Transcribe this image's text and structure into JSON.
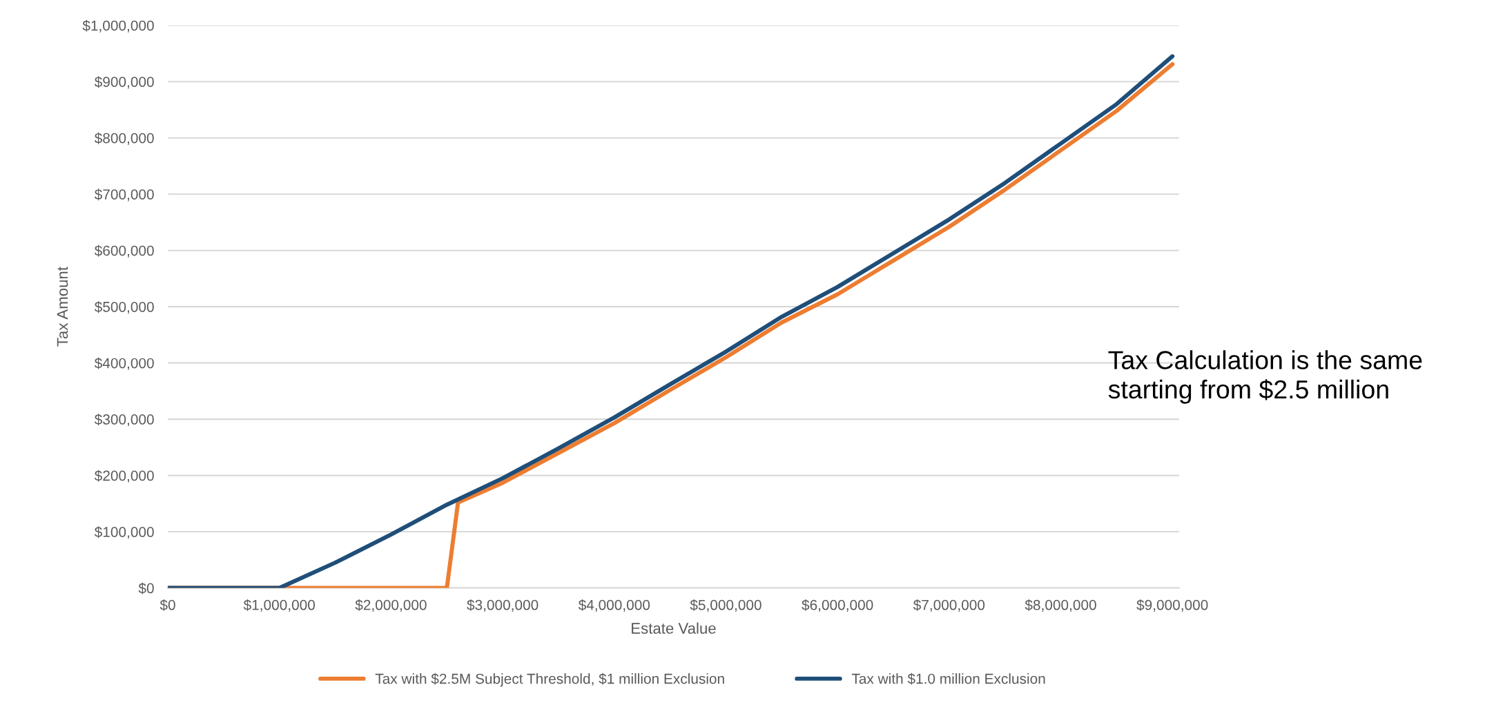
{
  "chart_data": {
    "type": "line",
    "xlabel": "Estate Value",
    "ylabel": "Tax Amount",
    "annotations": [
      "Tax Calculation is the same\nstarting from $2.5 million"
    ],
    "series": [
      {
        "name": "Tax with $2.5M Subject Threshold, $1 million Exclusion",
        "color": "#ed7d31",
        "x": [
          0,
          1000000,
          2000000,
          2500000,
          2600000,
          3000000,
          3500000,
          4000000,
          4500000,
          5000000,
          5500000,
          6000000,
          6500000,
          7000000,
          7500000,
          8000000,
          8500000,
          9000000
        ],
        "values": [
          0,
          0,
          0,
          0,
          152000,
          187000,
          240000,
          293000,
          352000,
          410000,
          472000,
          522000,
          582000,
          642000,
          708000,
          778000,
          848000,
          931000
        ]
      },
      {
        "name": "Tax with $1.0 million Exclusion",
        "color": "#1f4e79",
        "x": [
          0,
          500000,
          1000000,
          1500000,
          2000000,
          2500000,
          3000000,
          3500000,
          4000000,
          4500000,
          5000000,
          5500000,
          6000000,
          6500000,
          7000000,
          7500000,
          8000000,
          8500000,
          9000000
        ],
        "values": [
          0,
          0,
          0,
          45000,
          95000,
          148000,
          195000,
          248000,
          303000,
          362000,
          420000,
          482000,
          535000,
          595000,
          655000,
          720000,
          790000,
          860000,
          945000
        ]
      }
    ],
    "xlim": [
      0,
      9060000
    ],
    "ylim": [
      0,
      1000000
    ],
    "xticks": [
      {
        "value": 0,
        "label": "$0"
      },
      {
        "value": 1000000,
        "label": "$1,000,000"
      },
      {
        "value": 2000000,
        "label": "$2,000,000"
      },
      {
        "value": 3000000,
        "label": "$3,000,000"
      },
      {
        "value": 4000000,
        "label": "$4,000,000"
      },
      {
        "value": 5000000,
        "label": "$5,000,000"
      },
      {
        "value": 6000000,
        "label": "$6,000,000"
      },
      {
        "value": 7000000,
        "label": "$7,000,000"
      },
      {
        "value": 8000000,
        "label": "$8,000,000"
      },
      {
        "value": 9000000,
        "label": "$9,000,000"
      }
    ],
    "yticks": [
      {
        "value": 0,
        "label": "$0"
      },
      {
        "value": 100000,
        "label": "$100,000"
      },
      {
        "value": 200000,
        "label": "$200,000"
      },
      {
        "value": 300000,
        "label": "$300,000"
      },
      {
        "value": 400000,
        "label": "$400,000"
      },
      {
        "value": 500000,
        "label": "$500,000"
      },
      {
        "value": 600000,
        "label": "$600,000"
      },
      {
        "value": 700000,
        "label": "$700,000"
      },
      {
        "value": 800000,
        "label": "$800,000"
      },
      {
        "value": 900000,
        "label": "$900,000"
      },
      {
        "value": 1000000,
        "label": "$1,000,000"
      }
    ],
    "grid": "y",
    "legend": "bottom",
    "line_style": "solid"
  }
}
